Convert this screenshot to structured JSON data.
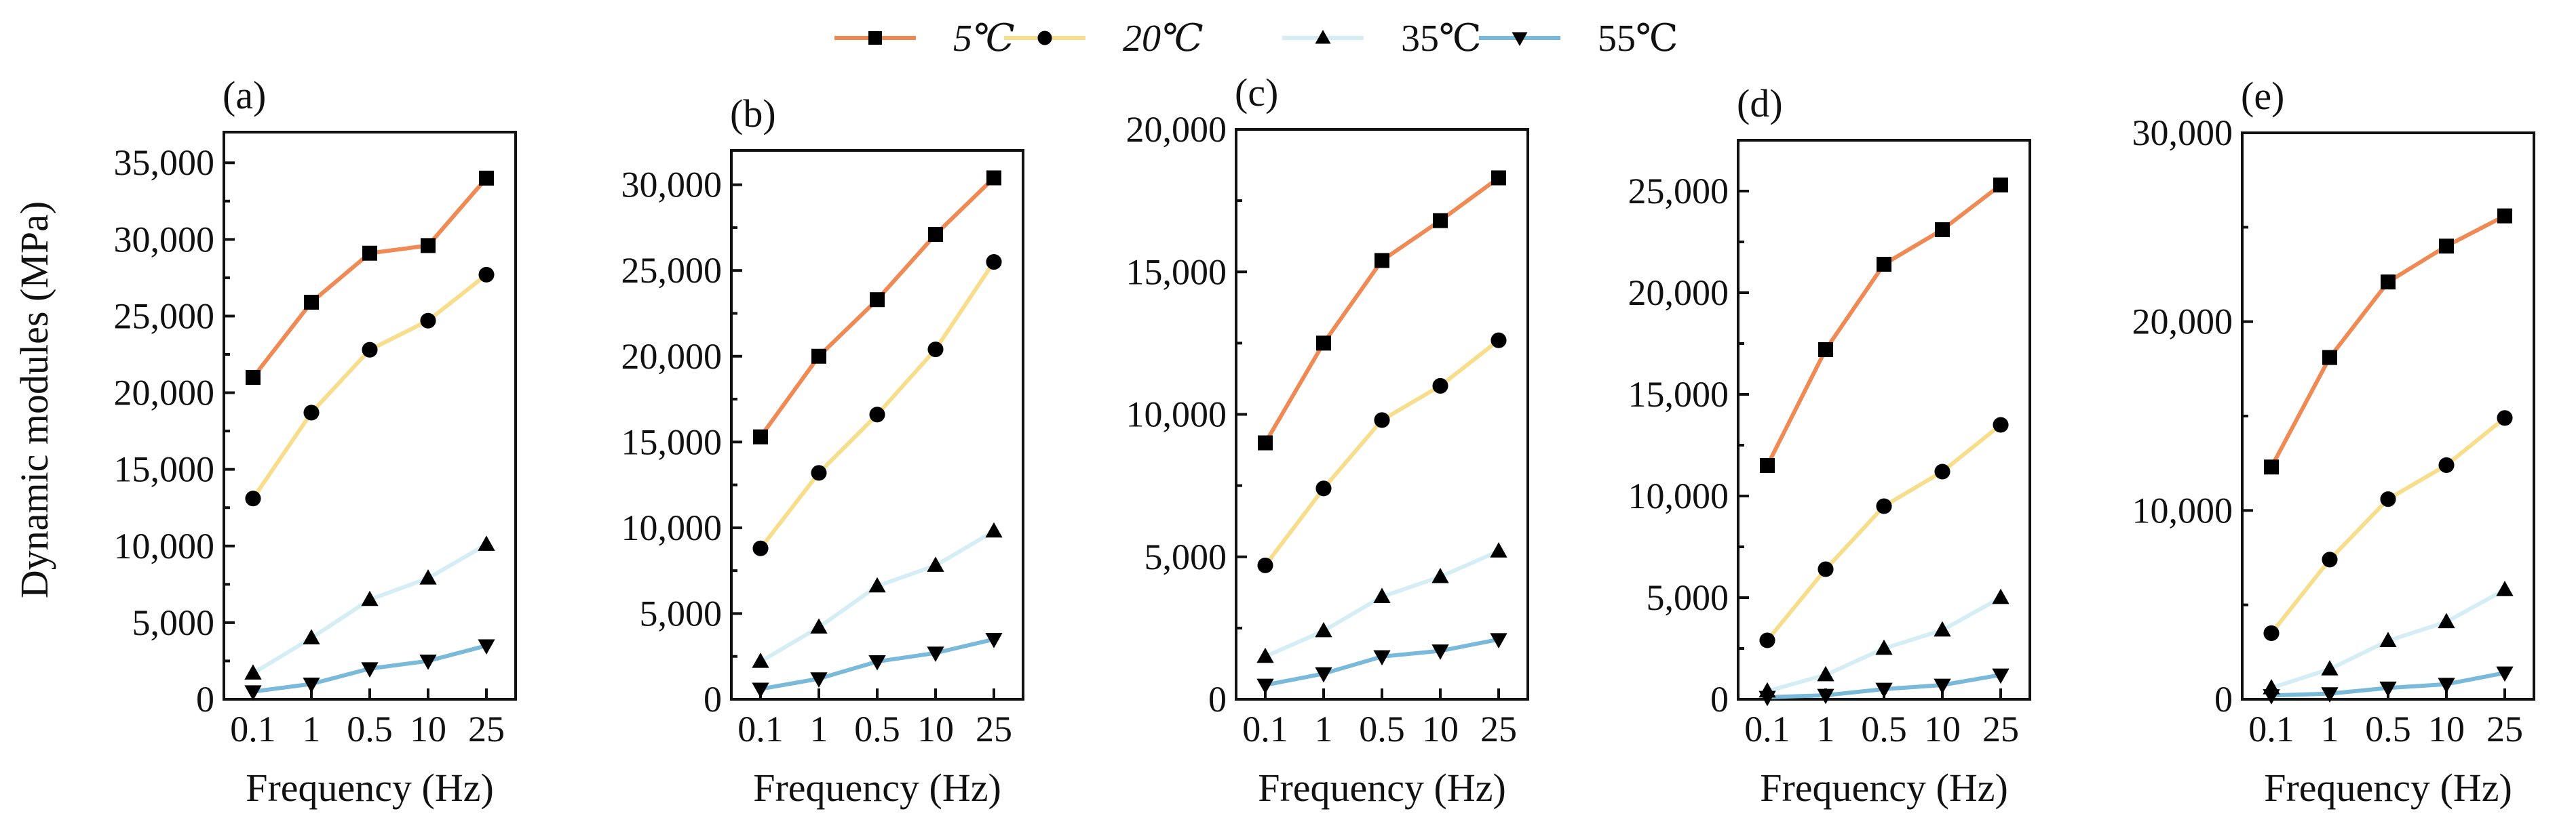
{
  "chart_data": {
    "type": "line",
    "ylabel": "Dynamic modules (MPa)",
    "xlabel": "Frequency (Hz)",
    "categories": [
      "0.1",
      "1",
      "0.5",
      "10",
      "25"
    ],
    "legend": {
      "position": "top-center",
      "entries": [
        {
          "name": "5℃",
          "color": "#F08A55",
          "marker": "square",
          "italic": true
        },
        {
          "name": "20℃",
          "color": "#F7DE8C",
          "marker": "circle",
          "italic": true
        },
        {
          "name": "35℃",
          "color": "#D5EEF6",
          "marker": "triangle-up",
          "italic": false
        },
        {
          "name": "55℃",
          "color": "#79B9D9",
          "marker": "triangle-down",
          "italic": false
        }
      ]
    },
    "panels": [
      {
        "label": "(a)",
        "ylim": [
          0,
          37000
        ],
        "yticks": [
          0,
          5000,
          10000,
          15000,
          20000,
          25000,
          30000,
          35000
        ],
        "ytick_labels": [
          "0",
          "5,000",
          "10,000",
          "15,000",
          "20,000",
          "25,000",
          "30,000",
          "35,000"
        ],
        "series": [
          {
            "name": "5℃",
            "values": [
              21000,
              25900,
              29100,
              29600,
              34000
            ]
          },
          {
            "name": "20℃",
            "values": [
              13100,
              18700,
              22800,
              24700,
              27700
            ]
          },
          {
            "name": "35℃",
            "values": [
              1700,
              4000,
              6500,
              7900,
              10100
            ]
          },
          {
            "name": "55℃",
            "values": [
              500,
              1000,
              2000,
              2500,
              3500
            ]
          }
        ]
      },
      {
        "label": "(b)",
        "ylim": [
          0,
          32000
        ],
        "yticks": [
          0,
          5000,
          10000,
          15000,
          20000,
          25000,
          30000
        ],
        "ytick_labels": [
          "0",
          "5,000",
          "10,000",
          "15,000",
          "20,000",
          "25,000",
          "30,000"
        ],
        "series": [
          {
            "name": "5℃",
            "values": [
              15300,
              20000,
              23300,
              27100,
              30400
            ]
          },
          {
            "name": "20℃",
            "values": [
              8800,
              13200,
              16600,
              20400,
              25500
            ]
          },
          {
            "name": "35℃",
            "values": [
              2200,
              4200,
              6600,
              7800,
              9800
            ]
          },
          {
            "name": "55℃",
            "values": [
              600,
              1200,
              2200,
              2700,
              3500
            ]
          }
        ]
      },
      {
        "label": "(c)",
        "ylim": [
          0,
          20000
        ],
        "yticks": [
          0,
          5000,
          10000,
          15000,
          20000
        ],
        "ytick_labels": [
          "0",
          "5,000",
          "10,000",
          "15,000",
          "20,000"
        ],
        "series": [
          {
            "name": "5℃",
            "values": [
              9000,
              12500,
              15400,
              16800,
              18300
            ]
          },
          {
            "name": "20℃",
            "values": [
              4700,
              7400,
              9800,
              11000,
              12600
            ]
          },
          {
            "name": "35℃",
            "values": [
              1500,
              2400,
              3600,
              4300,
              5200
            ]
          },
          {
            "name": "55℃",
            "values": [
              500,
              900,
              1500,
              1700,
              2100
            ]
          }
        ]
      },
      {
        "label": "(d)",
        "ylim": [
          0,
          27500
        ],
        "yticks": [
          0,
          5000,
          10000,
          15000,
          20000,
          25000
        ],
        "ytick_labels": [
          "0",
          "5,000",
          "10,000",
          "15,000",
          "20,000",
          "25,000"
        ],
        "series": [
          {
            "name": "5℃",
            "values": [
              11500,
              17200,
              21400,
              23100,
              25300
            ]
          },
          {
            "name": "20℃",
            "values": [
              2900,
              6400,
              9500,
              11200,
              13500
            ]
          },
          {
            "name": "35℃",
            "values": [
              400,
              1200,
              2500,
              3400,
              5000
            ]
          },
          {
            "name": "55℃",
            "values": [
              100,
              200,
              500,
              700,
              1200
            ]
          }
        ]
      },
      {
        "label": "(e)",
        "ylim": [
          0,
          30000
        ],
        "yticks": [
          0,
          10000,
          20000,
          30000
        ],
        "ytick_labels": [
          "0",
          "10,000",
          "20,000",
          "30,000"
        ],
        "series": [
          {
            "name": "5℃",
            "values": [
              12300,
              18100,
              22100,
              24000,
              25600
            ]
          },
          {
            "name": "20℃",
            "values": [
              3500,
              7400,
              10600,
              12400,
              14900
            ]
          },
          {
            "name": "35℃",
            "values": [
              600,
              1600,
              3100,
              4100,
              5800
            ]
          },
          {
            "name": "55℃",
            "values": [
              200,
              300,
              600,
              800,
              1400
            ]
          }
        ]
      }
    ]
  }
}
